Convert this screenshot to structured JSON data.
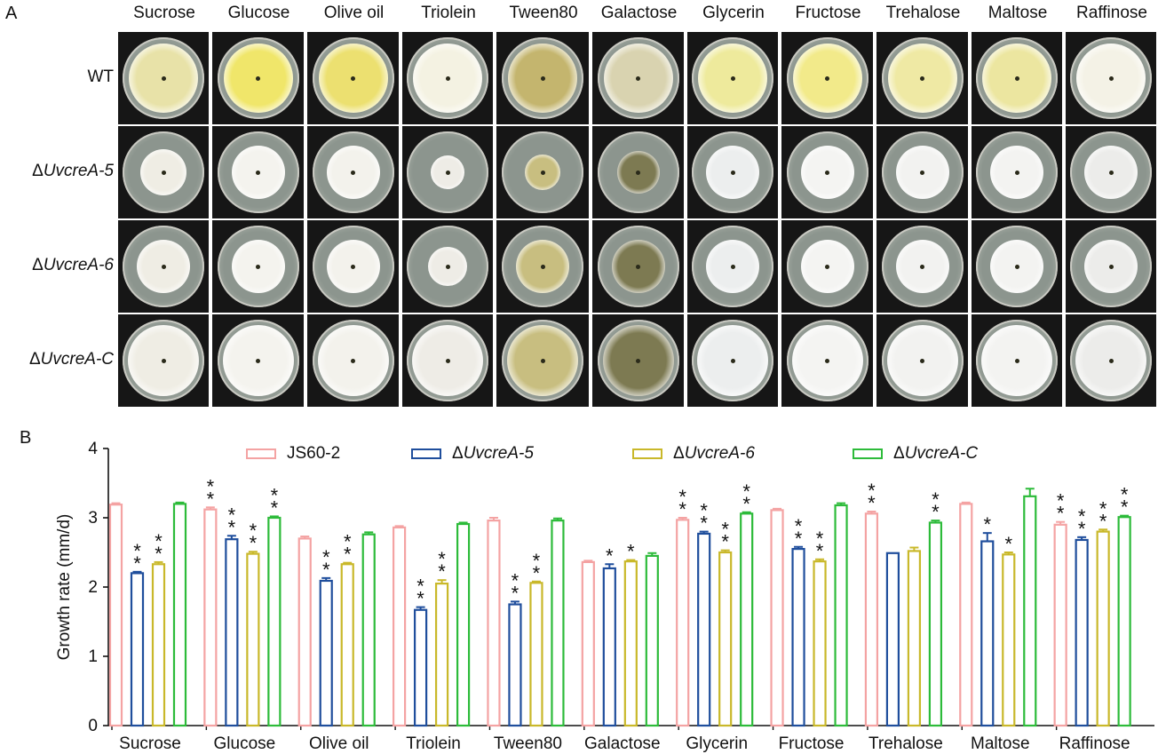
{
  "panel_a": {
    "letter": "A",
    "media": [
      "Sucrose",
      "Glucose",
      "Olive oil",
      "Triolein",
      "Tween80",
      "Galactose",
      "Glycerin",
      "Fructose",
      "Trehalose",
      "Maltose",
      "Raffinose"
    ],
    "strains": [
      {
        "prefix": "",
        "name": "WT",
        "italic": false
      },
      {
        "prefix": "Δ",
        "name": "UvcreA-5",
        "italic": true
      },
      {
        "prefix": "Δ",
        "name": "UvcreA-6",
        "italic": true
      },
      {
        "prefix": "Δ",
        "name": "UvcreA-C",
        "italic": true
      }
    ]
  },
  "panel_b": {
    "letter": "B"
  },
  "colors": {
    "JS60-2": "#f4a3a3",
    "UvcreA-5": "#1f4e9c",
    "UvcreA-6": "#c9b82a",
    "UvcreA-C": "#2dbb3a",
    "error_bar": "#111111"
  },
  "chart_data": {
    "type": "bar",
    "title": "",
    "xlabel": "",
    "ylabel": "Growth rate (mm/d)",
    "ylim": [
      0,
      4
    ],
    "yticks": [
      "0",
      "1",
      "2",
      "3",
      "4"
    ],
    "grid": false,
    "legend_position": "top",
    "categories": [
      "Sucrose",
      "Glucose",
      "Olive oil",
      "Triolein",
      "Tween80",
      "Galactose",
      "Glycerin",
      "Fructose",
      "Trehalose",
      "Maltose",
      "Raffinose"
    ],
    "series": [
      {
        "name": "JS60-2",
        "prefix": "",
        "italic": false,
        "values": [
          3.19,
          3.12,
          2.7,
          2.86,
          2.96,
          2.36,
          2.97,
          3.11,
          3.06,
          3.2,
          2.9
        ],
        "errors": [
          0.02,
          0.03,
          0.03,
          0.02,
          0.04,
          0.02,
          0.03,
          0.02,
          0.03,
          0.02,
          0.04
        ],
        "sig": [
          "",
          "**",
          "",
          "",
          "",
          "",
          "**",
          "",
          "**",
          "",
          "**"
        ]
      },
      {
        "name": "UvcreA-5",
        "prefix": "Δ",
        "italic": true,
        "values": [
          2.2,
          2.69,
          2.09,
          1.67,
          1.75,
          2.27,
          2.77,
          2.55,
          2.49,
          2.66,
          2.68
        ],
        "errors": [
          0.02,
          0.05,
          0.04,
          0.04,
          0.04,
          0.06,
          0.03,
          0.03,
          0.0,
          0.12,
          0.04
        ],
        "sig": [
          "**",
          "**",
          "**",
          "**",
          "**",
          "*",
          "**",
          "**",
          "",
          "*",
          "**"
        ]
      },
      {
        "name": "UvcreA-6",
        "prefix": "Δ",
        "italic": true,
        "values": [
          2.33,
          2.48,
          2.33,
          2.05,
          2.06,
          2.37,
          2.5,
          2.37,
          2.52,
          2.47,
          2.8
        ],
        "errors": [
          0.03,
          0.03,
          0.02,
          0.05,
          0.02,
          0.02,
          0.03,
          0.03,
          0.05,
          0.03,
          0.03
        ],
        "sig": [
          "**",
          "**",
          "**",
          "**",
          "**",
          "*",
          "**",
          "**",
          "",
          "*",
          "**"
        ]
      },
      {
        "name": "UvcreA-C",
        "prefix": "Δ",
        "italic": true,
        "values": [
          3.2,
          3.0,
          2.76,
          2.91,
          2.96,
          2.45,
          3.06,
          3.18,
          2.93,
          3.31,
          3.01
        ],
        "errors": [
          0.02,
          0.02,
          0.03,
          0.02,
          0.03,
          0.04,
          0.02,
          0.03,
          0.03,
          0.11,
          0.02
        ],
        "sig": [
          "",
          "**",
          "",
          "",
          "",
          "",
          "**",
          "",
          "**",
          "",
          "**"
        ]
      }
    ]
  }
}
